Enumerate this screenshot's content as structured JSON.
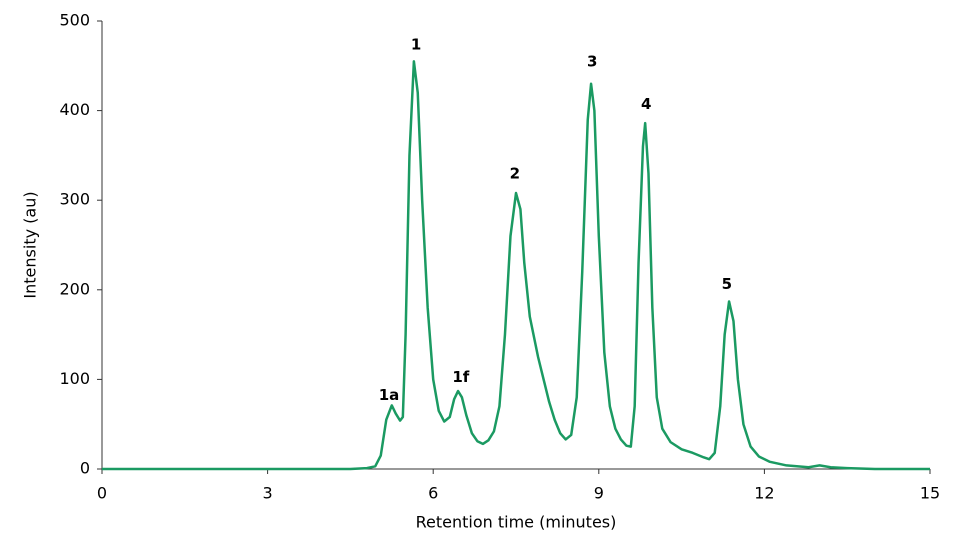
{
  "chart_data": {
    "type": "line",
    "xlabel": "Retention time (minutes)",
    "ylabel": "Intensity (au)",
    "xlim": [
      0,
      15
    ],
    "xticks": [
      0,
      3,
      6,
      9,
      12,
      15
    ],
    "ylim": [
      0,
      500
    ],
    "yticks": [
      0,
      100,
      200,
      300,
      400,
      500
    ],
    "grid": false,
    "series": [
      {
        "color": "#1b9a62",
        "x": [
          0,
          4.5,
          4.8,
          4.95,
          5.05,
          5.15,
          5.25,
          5.32,
          5.4,
          5.45,
          5.5,
          5.57,
          5.65,
          5.72,
          5.8,
          5.9,
          6.0,
          6.1,
          6.2,
          6.3,
          6.38,
          6.45,
          6.52,
          6.6,
          6.7,
          6.8,
          6.9,
          7.0,
          7.1,
          7.2,
          7.3,
          7.4,
          7.5,
          7.58,
          7.65,
          7.75,
          7.9,
          8.0,
          8.1,
          8.2,
          8.3,
          8.4,
          8.5,
          8.6,
          8.7,
          8.8,
          8.86,
          8.92,
          9.0,
          9.1,
          9.2,
          9.3,
          9.4,
          9.5,
          9.58,
          9.65,
          9.72,
          9.8,
          9.84,
          9.9,
          9.97,
          10.05,
          10.15,
          10.3,
          10.5,
          10.7,
          10.9,
          11.0,
          11.1,
          11.2,
          11.28,
          11.36,
          11.44,
          11.52,
          11.62,
          11.75,
          11.9,
          12.1,
          12.4,
          12.8,
          13.0,
          13.2,
          13.5,
          14,
          15
        ],
        "values": [
          0,
          0,
          1,
          3,
          15,
          55,
          71,
          62,
          54,
          58,
          150,
          350,
          455,
          420,
          300,
          180,
          100,
          65,
          53,
          58,
          78,
          87,
          80,
          60,
          40,
          31,
          28,
          32,
          42,
          70,
          150,
          260,
          308,
          290,
          230,
          170,
          125,
          100,
          75,
          55,
          40,
          33,
          38,
          80,
          220,
          390,
          430,
          400,
          260,
          130,
          70,
          45,
          33,
          26,
          25,
          70,
          230,
          360,
          386,
          330,
          180,
          80,
          45,
          30,
          22,
          18,
          13,
          11,
          18,
          70,
          150,
          187,
          165,
          100,
          50,
          25,
          14,
          8,
          4,
          2,
          4,
          2,
          1,
          0,
          0
        ]
      }
    ],
    "annotations": [
      {
        "text": "1a",
        "x": 5.2,
        "y": 82
      },
      {
        "text": "1",
        "x": 5.69,
        "y": 473
      },
      {
        "text": "1f",
        "x": 6.5,
        "y": 102
      },
      {
        "text": "2",
        "x": 7.48,
        "y": 329
      },
      {
        "text": "3",
        "x": 8.88,
        "y": 454
      },
      {
        "text": "4",
        "x": 9.86,
        "y": 407
      },
      {
        "text": "5",
        "x": 11.32,
        "y": 206
      }
    ]
  }
}
